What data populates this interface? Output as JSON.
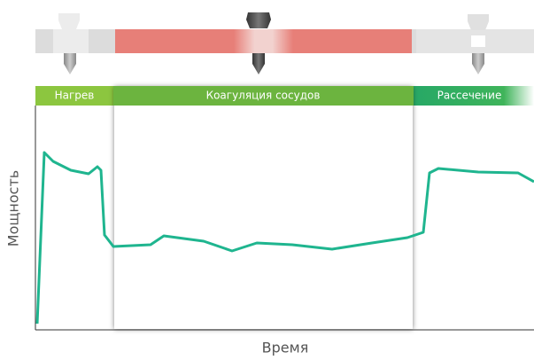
{
  "phases": [
    {
      "label": "Нагрев"
    },
    {
      "label": "Коагуляция сосудов"
    },
    {
      "label": "Рассечение"
    }
  ],
  "axes": {
    "y_label": "Мощность",
    "x_label": "Время"
  }
}
